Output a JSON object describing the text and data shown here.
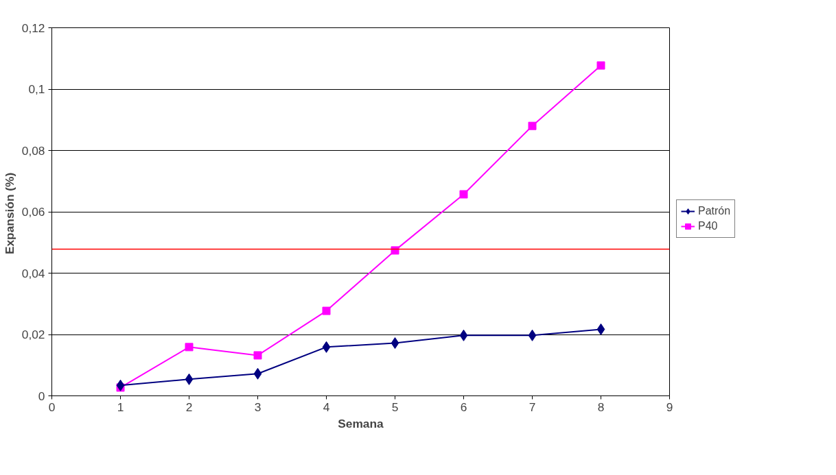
{
  "chart_data": {
    "type": "line",
    "xlabel": "Semana",
    "ylabel": "Expansión  (%)",
    "x": [
      1,
      2,
      3,
      4,
      5,
      6,
      7,
      8
    ],
    "series": [
      {
        "name": "Patrón",
        "color": "#000080",
        "marker": "diamond",
        "values": [
          0.0034,
          0.0054,
          0.0072,
          0.0159,
          0.0172,
          0.0197,
          0.0197,
          0.0217
        ]
      },
      {
        "name": "P40",
        "color": "#ff00ff",
        "marker": "square",
        "values": [
          0.0027,
          0.0159,
          0.0132,
          0.0277,
          0.0474,
          0.0657,
          0.088,
          0.1077
        ]
      }
    ],
    "xlim": [
      0,
      9
    ],
    "xticks": [
      0,
      1,
      2,
      3,
      4,
      5,
      6,
      7,
      8,
      9
    ],
    "ylim": [
      0,
      0.12
    ],
    "yticks": [
      {
        "value": 0,
        "label": "0"
      },
      {
        "value": 0.02,
        "label": "0,02"
      },
      {
        "value": 0.04,
        "label": "0,04"
      },
      {
        "value": 0.06,
        "label": "0,06"
      },
      {
        "value": 0.08,
        "label": "0,08"
      },
      {
        "value": 0.1,
        "label": "0,1"
      },
      {
        "value": 0.12,
        "label": "0,12"
      }
    ],
    "ref_lines": [
      {
        "axis": "y",
        "value": 0.0478,
        "color": "#ff0000"
      }
    ],
    "grid": "y",
    "legend": "right",
    "line_style": "solid"
  }
}
